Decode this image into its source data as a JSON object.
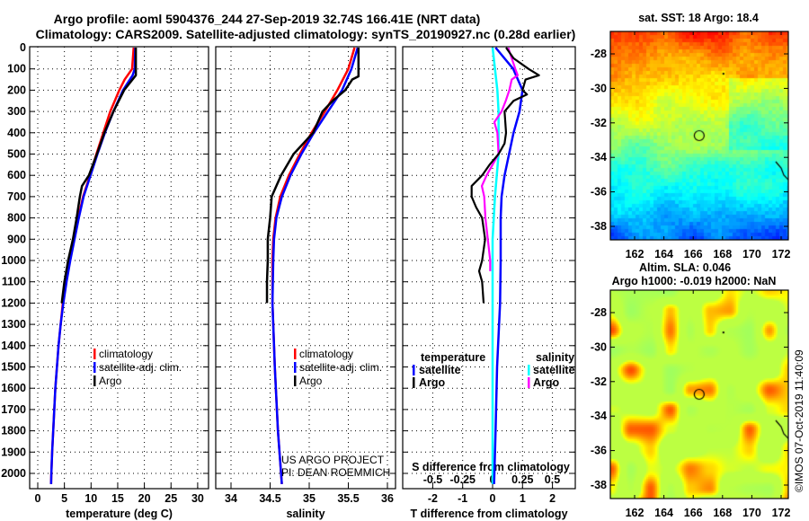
{
  "header": {
    "line1": "Argo profile: aoml 5904376_244 27-Sep-2019 32.74S 166.41E (NRT data)",
    "line2": "Climatology: CARS2009. Satellite-adjusted climatology: synTS_20190927.nc (0.28d earlier)"
  },
  "credits": {
    "project": "US ARGO PROJECT",
    "pi": "PI: DEAN ROEMMICH",
    "copyright": "©IMOS 07-Oct-2019 11:40:09"
  },
  "colors": {
    "climatology": "#ff0000",
    "satellite": "#0000ff",
    "argo": "#000000",
    "sal_satellite": "#00ffff",
    "sal_argo": "#ff00ff"
  },
  "chart_data": [
    {
      "type": "line",
      "title": "",
      "xlabel": "temperature (deg C)",
      "ylabel": "",
      "xlim": [
        -1.5,
        32
      ],
      "ylim": [
        2070,
        0
      ],
      "xticks": [
        "0",
        "5",
        "10",
        "15",
        "20",
        "25",
        "30"
      ],
      "yticks": [
        "0",
        "100",
        "200",
        "300",
        "400",
        "500",
        "600",
        "700",
        "800",
        "900",
        "1000",
        "1100",
        "1200",
        "1300",
        "1400",
        "1500",
        "1600",
        "1700",
        "1800",
        "1900",
        "2000"
      ],
      "legend": [
        "climatology",
        "satellite-adj. clim.",
        "Argo"
      ],
      "series": [
        {
          "name": "climatology",
          "depth": [
            0,
            100,
            150,
            200,
            300,
            400,
            500,
            600,
            700,
            800,
            900,
            1000,
            1100,
            1200,
            1300,
            1400,
            1500,
            1600,
            1700,
            1800,
            1900,
            2000,
            2050
          ],
          "values": [
            18.0,
            17.7,
            16.3,
            15.3,
            13.6,
            12.3,
            11.0,
            9.8,
            8.5,
            7.6,
            6.8,
            6.0,
            5.3,
            4.7,
            4.3,
            3.9,
            3.6,
            3.3,
            3.1,
            2.9,
            2.7,
            2.55,
            2.5
          ]
        },
        {
          "name": "satellite-adj. clim.",
          "depth": [
            0,
            100,
            130,
            200,
            300,
            400,
            500,
            600,
            700,
            800,
            900,
            1000,
            1100,
            1200,
            1300,
            1400,
            1500,
            1600,
            1700,
            1800,
            1900,
            2000,
            2050
          ],
          "values": [
            18.3,
            18.2,
            17.8,
            16.0,
            14.2,
            12.6,
            11.2,
            9.9,
            8.6,
            7.7,
            6.9,
            6.1,
            5.4,
            4.8,
            4.3,
            3.9,
            3.6,
            3.3,
            3.1,
            2.9,
            2.7,
            2.55,
            2.5
          ]
        },
        {
          "name": "Argo",
          "depth": [
            0,
            130,
            200,
            300,
            400,
            500,
            600,
            650,
            700,
            800,
            900,
            1000,
            1100,
            1200
          ],
          "values": [
            18.4,
            18.4,
            16.2,
            14.2,
            12.5,
            11.1,
            9.6,
            8.3,
            7.9,
            7.3,
            6.6,
            5.7,
            5.0,
            4.5
          ]
        }
      ]
    },
    {
      "type": "line",
      "xlabel": "salinity",
      "xlim": [
        33.8,
        36.1
      ],
      "ylim": [
        2070,
        0
      ],
      "xticks": [
        "34",
        "34.5",
        "35",
        "35.5",
        "36"
      ],
      "legend": [
        "climatology",
        "satellite-adj. clim.",
        "Argo"
      ],
      "series": [
        {
          "name": "climatology",
          "depth": [
            0,
            100,
            200,
            300,
            400,
            500,
            600,
            700,
            800,
            900,
            1000,
            1200,
            1500,
            1800,
            2000,
            2050
          ],
          "values": [
            35.58,
            35.5,
            35.36,
            35.2,
            35.03,
            34.88,
            34.74,
            34.63,
            34.57,
            34.54,
            34.53,
            34.53,
            34.56,
            34.6,
            34.64,
            34.65
          ]
        },
        {
          "name": "satellite-adj. clim.",
          "depth": [
            0,
            100,
            200,
            300,
            400,
            500,
            600,
            700,
            800,
            900,
            1000,
            1200,
            1500,
            1800,
            2000,
            2050
          ],
          "values": [
            35.62,
            35.54,
            35.42,
            35.24,
            35.06,
            34.9,
            34.76,
            34.65,
            34.58,
            34.55,
            34.54,
            34.53,
            34.56,
            34.6,
            34.64,
            34.65
          ]
        },
        {
          "name": "Argo",
          "depth": [
            0,
            135,
            150,
            200,
            250,
            300,
            400,
            500,
            600,
            650,
            700,
            800,
            900,
            1000,
            1100,
            1200
          ],
          "values": [
            35.63,
            35.63,
            35.55,
            35.46,
            35.3,
            35.17,
            35.05,
            34.8,
            34.64,
            34.58,
            34.52,
            34.5,
            34.47,
            34.47,
            34.46,
            34.46
          ]
        }
      ]
    },
    {
      "type": "line",
      "xlabel": "T difference from climatology",
      "xlabel2": "S difference from climatology",
      "xlim": [
        -3.0,
        2.8
      ],
      "xlim_S": [
        -0.75,
        0.7
      ],
      "ylim": [
        2070,
        0
      ],
      "xticks": [
        "-2",
        "-1",
        "0",
        "1",
        "2"
      ],
      "xticks_S": [
        "-0.5",
        "-0.25",
        "0",
        "0.25",
        "0.5"
      ],
      "legend_T": {
        "heading": "temperature",
        "items": [
          "satellite",
          "Argo"
        ]
      },
      "legend_S": {
        "heading": "salinity",
        "items": [
          "satellite",
          "Argo"
        ]
      },
      "series": [
        {
          "name": "T satellite",
          "depth": [
            0,
            100,
            200,
            300,
            400,
            500,
            600,
            700,
            800,
            1000,
            1200,
            1500,
            1800,
            2050
          ],
          "values": [
            0.1,
            0.69,
            1.0,
            0.9,
            0.7,
            0.55,
            0.4,
            0.3,
            0.27,
            0.27,
            0.25,
            0.15,
            0.1,
            0.05
          ]
        },
        {
          "name": "T Argo",
          "depth": [
            0,
            50,
            100,
            130,
            150,
            200,
            220,
            250,
            300,
            400,
            450,
            500,
            550,
            600,
            650,
            700,
            750,
            800,
            900,
            1000,
            1050,
            1100,
            1200
          ],
          "values": [
            0.45,
            0.7,
            1.2,
            1.55,
            1.1,
            1.0,
            1.15,
            0.7,
            0.4,
            0.45,
            0.4,
            0.2,
            -0.1,
            -0.35,
            -0.7,
            -0.7,
            -0.55,
            -0.35,
            -0.25,
            -0.35,
            -0.45,
            -0.35,
            -0.3
          ]
        },
        {
          "name": "S satellite",
          "depth": [
            0,
            200,
            300,
            500,
            700,
            900,
            1200,
            1500,
            2050
          ],
          "values": [
            0.0,
            0.04,
            0.05,
            0.05,
            0.02,
            0.0,
            0.0,
            0.0,
            0.0
          ]
        },
        {
          "name": "S Argo",
          "depth": [
            0,
            100,
            130,
            150,
            200,
            250,
            300,
            350,
            400,
            500,
            550,
            600,
            650,
            700,
            800,
            900,
            1000,
            1050
          ],
          "values": [
            0.13,
            0.19,
            0.21,
            0.16,
            0.14,
            0.11,
            0.075,
            0.015,
            0.04,
            0.05,
            0.0,
            -0.05,
            -0.09,
            -0.07,
            -0.06,
            -0.04,
            -0.02,
            -0.02
          ]
        }
      ]
    },
    {
      "type": "heatmap",
      "title": "sat. SST: 18 Argo: 18.4",
      "xticks": [
        "162",
        "164",
        "166",
        "168",
        "170",
        "172"
      ],
      "yticks": [
        "-28",
        "-30",
        "-32",
        "-34",
        "-36",
        "-38"
      ],
      "marker": {
        "lon": 166.41,
        "lat": -32.74
      }
    },
    {
      "type": "heatmap",
      "title1": "Altim. SLA: 0.046",
      "title2": "Argo h1000: -0.019 h2000: NaN",
      "xticks": [
        "162",
        "164",
        "166",
        "168",
        "170",
        "172"
      ],
      "yticks": [
        "-28",
        "-30",
        "-32",
        "-34",
        "-36",
        "-38"
      ],
      "marker": {
        "lon": 166.41,
        "lat": -32.74
      }
    }
  ]
}
